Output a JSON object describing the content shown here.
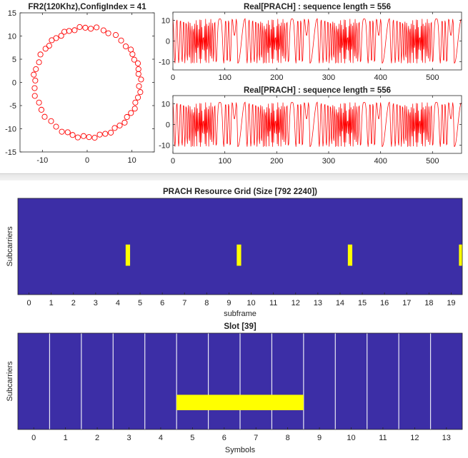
{
  "chart_data": [
    {
      "id": "constellation",
      "type": "scatter",
      "title": "FR2(120Khz),ConfigIndex = 41",
      "xlim": [
        -15,
        15
      ],
      "ylim": [
        -15,
        15
      ],
      "xticks": [
        -10,
        0,
        10
      ],
      "xtick_labels": [
        "-10",
        "0",
        "10"
      ],
      "yticks": [
        -15,
        -10,
        -5,
        0,
        5,
        10,
        15
      ],
      "ytick_labels": [
        "-15",
        "-10",
        "-5",
        "0",
        "5",
        "10",
        "15"
      ],
      "marker": "circle",
      "color": "#ff0000",
      "radius": 11.8,
      "angles_deg": [
        3,
        9,
        14,
        20,
        25,
        31,
        36,
        42,
        50,
        58,
        66,
        72,
        80,
        86,
        92,
        98,
        104,
        110,
        115,
        120,
        126,
        131,
        137,
        142,
        150,
        158,
        166,
        172,
        178,
        186,
        194,
        202,
        210,
        218,
        226,
        234,
        242,
        248,
        254,
        260,
        266,
        272,
        278,
        284,
        290,
        296,
        302,
        308,
        314,
        320,
        326,
        332,
        338,
        344,
        350,
        356
      ]
    },
    {
      "id": "prach-seq-1",
      "type": "line",
      "title": "Real[PRACH] : sequence length = 556",
      "xlim": [
        0,
        556
      ],
      "ylim": [
        -14,
        14
      ],
      "xticks": [
        0,
        100,
        200,
        300,
        400,
        500
      ],
      "xtick_labels": [
        "0",
        "100",
        "200",
        "300",
        "400",
        "500"
      ],
      "yticks": [
        -10,
        0,
        10
      ],
      "ytick_labels": [
        "-10",
        "0",
        "10"
      ],
      "color": "#ff0000",
      "pattern_period": 139,
      "samples": 556
    },
    {
      "id": "prach-seq-2",
      "type": "line",
      "title": "Real[PRACH] : sequence length = 556",
      "xlim": [
        0,
        556
      ],
      "ylim": [
        -14,
        14
      ],
      "xticks": [
        0,
        100,
        200,
        300,
        400,
        500
      ],
      "xtick_labels": [
        "0",
        "100",
        "200",
        "300",
        "400",
        "500"
      ],
      "yticks": [
        -10,
        0,
        10
      ],
      "ytick_labels": [
        "-10",
        "0",
        "10"
      ],
      "color": "#ff0000",
      "pattern_period": 139,
      "samples": 556
    },
    {
      "id": "resource-grid",
      "type": "heatmap",
      "title": "PRACH Resource Grid (Size [792 2240])",
      "xlabel": "subframe",
      "ylabel": "Subcarriers",
      "xlim": [
        -0.5,
        19.5
      ],
      "xticks": [
        0,
        1,
        2,
        3,
        4,
        5,
        6,
        7,
        8,
        9,
        10,
        11,
        12,
        13,
        14,
        15,
        16,
        17,
        18,
        19
      ],
      "xtick_labels": [
        "0",
        "1",
        "2",
        "3",
        "4",
        "5",
        "6",
        "7",
        "8",
        "9",
        "10",
        "11",
        "12",
        "13",
        "14",
        "15",
        "16",
        "17",
        "18",
        "19"
      ],
      "background_color": "#3c2ea6",
      "active_color": "#ffff00",
      "active_blocks": [
        {
          "x_start": 4.35,
          "x_end": 4.55,
          "y_start": 0.3,
          "y_end": 0.52
        },
        {
          "x_start": 9.35,
          "x_end": 9.55,
          "y_start": 0.3,
          "y_end": 0.52
        },
        {
          "x_start": 14.35,
          "x_end": 14.55,
          "y_start": 0.3,
          "y_end": 0.52
        },
        {
          "x_start": 19.35,
          "x_end": 19.5,
          "y_start": 0.3,
          "y_end": 0.52
        }
      ]
    },
    {
      "id": "slot-grid",
      "type": "heatmap",
      "title": "Slot [39]",
      "xlabel": "Symbols",
      "ylabel": "Subcarriers",
      "xlim": [
        -0.5,
        13.5
      ],
      "xticks": [
        0,
        1,
        2,
        3,
        4,
        5,
        6,
        7,
        8,
        9,
        10,
        11,
        12,
        13
      ],
      "xtick_labels": [
        "0",
        "1",
        "2",
        "3",
        "4",
        "5",
        "6",
        "7",
        "8",
        "9",
        "10",
        "11",
        "12",
        "13"
      ],
      "background_color": "#3c2ea6",
      "active_color": "#ffff00",
      "symbol_boundaries": [
        0.5,
        1.5,
        2.5,
        3.5,
        4.5,
        5.5,
        6.5,
        7.5,
        8.5,
        9.5,
        10.5,
        11.5,
        12.5
      ],
      "active_blocks": [
        {
          "x_start": 4.5,
          "x_end": 8.5,
          "y_start": 0.2,
          "y_end": 0.36
        }
      ]
    }
  ]
}
